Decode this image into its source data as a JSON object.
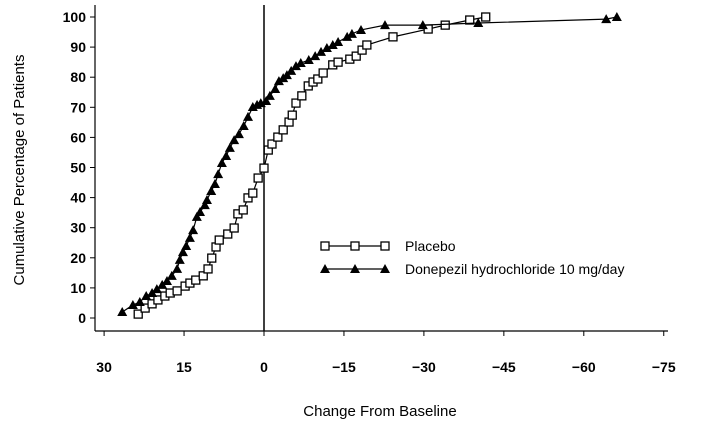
{
  "chart_data": {
    "type": "line",
    "title": "",
    "xlabel": "Change From Baseline",
    "ylabel": "Cumulative Percentage of Patients",
    "xlim": [
      32,
      -78
    ],
    "ylim": [
      0,
      100
    ],
    "x_reversed": true,
    "xticks": [
      30,
      15,
      0,
      -15,
      -30,
      -45,
      -60,
      -75
    ],
    "xtick_labels": [
      "30",
      "15",
      "0",
      "−15",
      "−30",
      "−45",
      "−60",
      "−75"
    ],
    "yticks": [
      0,
      10,
      20,
      30,
      40,
      50,
      60,
      70,
      80,
      90,
      100
    ],
    "ytick_labels": [
      "0",
      "10",
      "20",
      "30",
      "40",
      "50",
      "60",
      "70",
      "80",
      "90",
      "100"
    ],
    "grid": false,
    "reference_line_x": 0,
    "legend_position": "center-right",
    "series": [
      {
        "name": "Placebo",
        "marker": "open-square",
        "x": [
          23.6,
          22.3,
          21.0,
          19.9,
          18.6,
          17.6,
          16.3,
          14.8,
          13.9,
          12.8,
          11.4,
          10.5,
          9.8,
          9.0,
          8.4,
          6.8,
          5.6,
          4.9,
          3.9,
          3.0,
          2.1,
          1.1,
          0,
          -0.8,
          -1.5,
          -2.6,
          -3.6,
          -4.7,
          -5.3,
          -6.0,
          -7.1,
          -8.3,
          -9.2,
          -10.1,
          -11.1,
          -12.9,
          -13.9,
          -16.1,
          -17.3,
          -18.4,
          -19.3,
          -24.2,
          -30.8,
          -34.0,
          -38.6,
          -41.6
        ],
        "y": [
          1.3,
          3.3,
          4.7,
          6.0,
          7.3,
          8.3,
          9.0,
          10.6,
          11.6,
          12.6,
          14.0,
          16.3,
          19.9,
          23.6,
          25.9,
          27.9,
          29.9,
          34.6,
          35.9,
          39.9,
          41.5,
          46.5,
          49.8,
          55.8,
          57.8,
          60.1,
          62.5,
          65.1,
          67.4,
          71.4,
          73.8,
          77.1,
          78.4,
          79.4,
          81.4,
          84.1,
          85.0,
          86.0,
          87.0,
          89.0,
          90.7,
          93.4,
          96.0,
          97.3,
          99.0,
          100
        ]
      },
      {
        "name": "Donepezil hydrochloride 10 mg/day",
        "marker": "filled-triangle",
        "x": [
          26.6,
          24.6,
          23.3,
          22.1,
          21.0,
          20.1,
          19.1,
          18.2,
          17.3,
          16.3,
          15.8,
          15.2,
          14.6,
          13.9,
          13.3,
          12.6,
          12.0,
          11.1,
          10.7,
          9.9,
          9.2,
          8.6,
          7.9,
          7.1,
          6.4,
          5.6,
          4.7,
          3.8,
          3.0,
          2.1,
          1.3,
          0.6,
          -0.4,
          -1.1,
          -2.1,
          -2.8,
          -3.6,
          -4.3,
          -5.1,
          -6.0,
          -6.9,
          -8.4,
          -9.6,
          -10.7,
          -11.8,
          -12.9,
          -13.9,
          -15.6,
          -16.5,
          -18.2,
          -22.7,
          -29.8,
          -40.2,
          -64.2,
          -66.2
        ],
        "y": [
          2.0,
          4.3,
          5.3,
          7.3,
          8.3,
          9.6,
          11.0,
          12.3,
          14.0,
          16.3,
          19.3,
          21.9,
          23.9,
          26.6,
          29.2,
          33.6,
          35.2,
          37.5,
          39.2,
          42.2,
          44.5,
          47.8,
          51.5,
          53.8,
          56.5,
          59.1,
          61.1,
          63.8,
          66.8,
          70.1,
          70.8,
          71.4,
          72.1,
          73.8,
          76.1,
          78.7,
          79.7,
          80.7,
          82.1,
          83.7,
          84.7,
          85.7,
          87.0,
          88.4,
          89.7,
          90.7,
          91.7,
          93.4,
          94.4,
          95.7,
          97.3,
          97.3,
          98.0,
          99.3,
          100
        ]
      }
    ]
  }
}
